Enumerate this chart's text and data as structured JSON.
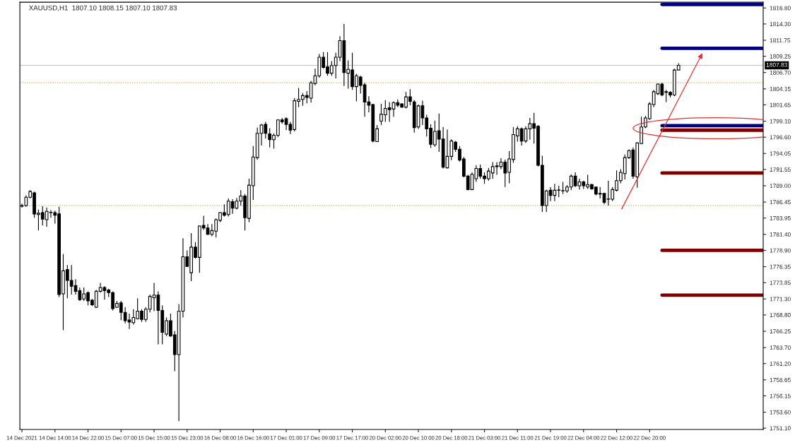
{
  "chart_data": {
    "type": "candlestick",
    "title": "XAUUSD,H1  1807.10 1808.15 1807.10 1807.83",
    "categories": [
      "14 Dec 2021",
      null,
      null,
      null,
      null,
      null,
      null,
      null,
      "14 Dec 14:00",
      null,
      null,
      null,
      null,
      null,
      null,
      null,
      "14 Dec 22:00",
      null,
      null,
      null,
      null,
      null,
      null,
      null,
      "15 Dec 07:00",
      null,
      null,
      null,
      null,
      null,
      null,
      null,
      "15 Dec 15:00",
      null,
      null,
      null,
      null,
      null,
      null,
      null,
      "15 Dec 23:00",
      null,
      null,
      null,
      null,
      null,
      null,
      null,
      "16 Dec 08:00",
      null,
      null,
      null,
      null,
      null,
      null,
      null,
      "16 Dec 16:00",
      null,
      null,
      null,
      null,
      null,
      null,
      null,
      "17 Dec 01:00",
      null,
      null,
      null,
      null,
      null,
      null,
      null,
      "17 Dec 09:00",
      null,
      null,
      null,
      null,
      null,
      null,
      null,
      "17 Dec 17:00",
      null,
      null,
      null,
      null,
      null,
      null,
      null,
      "20 Dec 02:00",
      null,
      null,
      null,
      null,
      null,
      null,
      null,
      "20 Dec 10:00",
      null,
      null,
      null,
      null,
      null,
      null,
      null,
      "20 Dec 18:00",
      null,
      null,
      null,
      null,
      null,
      null,
      null,
      "21 Dec 03:00",
      null,
      null,
      null,
      null,
      null,
      null,
      null,
      "21 Dec 11:00",
      null,
      null,
      null,
      null,
      null,
      null,
      null,
      "21 Dec 19:00",
      null,
      null,
      null,
      null,
      null,
      null,
      null,
      "22 Dec 04:00",
      null,
      null,
      null,
      null,
      null,
      null,
      null,
      "22 Dec 12:00",
      null,
      null,
      null,
      null,
      null,
      null,
      null,
      "22 Dec 20:00",
      null,
      null,
      null,
      null,
      null,
      null,
      null,
      null,
      null,
      null,
      null,
      null,
      null,
      null,
      null,
      null,
      null,
      null,
      null,
      null,
      null,
      null,
      null,
      null,
      null,
      null,
      null
    ],
    "ohlc": [
      [
        1785.8,
        1786.2,
        1785.6,
        1785.9
      ],
      [
        1785.9,
        1787.5,
        1785.7,
        1787.2
      ],
      [
        1787.2,
        1788.3,
        1787.0,
        1788.1
      ],
      [
        1787.9,
        1788.1,
        1784.0,
        1784.6
      ],
      [
        1784.5,
        1785.3,
        1782.0,
        1784.7
      ],
      [
        1784.8,
        1785.8,
        1782.8,
        1783.8
      ],
      [
        1783.7,
        1785.6,
        1782.6,
        1785.0
      ],
      [
        1784.8,
        1785.2,
        1784.0,
        1784.8
      ],
      [
        1784.8,
        1785.1,
        1783.1,
        1784.4
      ],
      [
        1784.6,
        1785.7,
        1771.6,
        1772.0
      ],
      [
        1772.1,
        1778.3,
        1766.4,
        1775.7
      ],
      [
        1775.9,
        1776.6,
        1771.4,
        1774.2
      ],
      [
        1774.2,
        1776.6,
        1772.0,
        1773.3
      ],
      [
        1773.4,
        1774.4,
        1772.0,
        1772.5
      ],
      [
        1772.6,
        1773.1,
        1771.0,
        1771.2
      ],
      [
        1771.3,
        1773.1,
        1771.0,
        1772.1
      ],
      [
        1772.3,
        1772.5,
        1770.3,
        1771.0
      ],
      [
        1771.1,
        1771.3,
        1770.2,
        1770.4
      ],
      [
        1770.0,
        1772.7,
        1769.9,
        1772.5
      ],
      [
        1772.5,
        1773.8,
        1772.3,
        1773.1
      ],
      [
        1773.1,
        1773.3,
        1771.2,
        1772.6
      ],
      [
        1772.7,
        1772.9,
        1771.6,
        1772.3
      ],
      [
        1772.3,
        1772.5,
        1769.5,
        1769.8
      ],
      [
        1770.0,
        1771.0,
        1769.9,
        1770.6
      ],
      [
        1770.7,
        1771.0,
        1768.0,
        1769.2
      ],
      [
        1769.2,
        1770.0,
        1767.5,
        1767.9
      ],
      [
        1768.0,
        1769.0,
        1766.6,
        1767.7
      ],
      [
        1767.6,
        1769.7,
        1767.3,
        1768.4
      ],
      [
        1768.2,
        1771.4,
        1768.1,
        1769.4
      ],
      [
        1769.4,
        1769.7,
        1767.7,
        1768.1
      ],
      [
        1768.1,
        1770.0,
        1767.7,
        1769.7
      ],
      [
        1769.7,
        1772.0,
        1769.2,
        1771.7
      ],
      [
        1771.5,
        1773.8,
        1769.4,
        1771.9
      ],
      [
        1771.9,
        1772.5,
        1764.2,
        1769.5
      ],
      [
        1769.5,
        1770.3,
        1764.2,
        1766.1
      ],
      [
        1765.8,
        1768.4,
        1765.5,
        1767.9
      ],
      [
        1767.9,
        1769.0,
        1765.4,
        1765.5
      ],
      [
        1765.7,
        1766.3,
        1760.0,
        1762.6
      ],
      [
        1762.6,
        1770.5,
        1752.2,
        1769.4
      ],
      [
        1769.4,
        1780.8,
        1768.4,
        1777.9
      ],
      [
        1777.9,
        1778.9,
        1776.3,
        1776.4
      ],
      [
        1775.4,
        1781.6,
        1774.1,
        1779.4
      ],
      [
        1779.4,
        1780.2,
        1777.6,
        1777.8
      ],
      [
        1777.8,
        1782.8,
        1775.4,
        1782.7
      ],
      [
        1782.8,
        1784.3,
        1782.1,
        1782.4
      ],
      [
        1782.4,
        1783.0,
        1781.3,
        1781.4
      ],
      [
        1781.4,
        1783.0,
        1781.1,
        1782.0
      ],
      [
        1781.9,
        1783.9,
        1780.9,
        1783.7
      ],
      [
        1783.6,
        1784.9,
        1783.3,
        1784.8
      ],
      [
        1784.8,
        1786.1,
        1784.2,
        1784.4
      ],
      [
        1784.5,
        1787.0,
        1784.2,
        1786.6
      ],
      [
        1786.5,
        1786.9,
        1784.6,
        1785.5
      ],
      [
        1785.5,
        1787.1,
        1785.3,
        1786.6
      ],
      [
        1786.6,
        1788.3,
        1785.9,
        1787.4
      ],
      [
        1787.4,
        1787.7,
        1782.0,
        1784.0
      ],
      [
        1783.9,
        1790.1,
        1783.3,
        1789.1
      ],
      [
        1789.0,
        1795.2,
        1786.8,
        1793.5
      ],
      [
        1793.4,
        1798.1,
        1793.1,
        1797.2
      ],
      [
        1797.2,
        1798.7,
        1795.3,
        1798.5
      ],
      [
        1798.6,
        1799.0,
        1796.4,
        1797.2
      ],
      [
        1797.1,
        1798.0,
        1795.0,
        1796.2
      ],
      [
        1796.2,
        1797.2,
        1794.8,
        1796.9
      ],
      [
        1796.9,
        1799.4,
        1796.6,
        1799.3
      ],
      [
        1799.3,
        1799.6,
        1798.7,
        1799.0
      ],
      [
        1799.5,
        1799.7,
        1797.7,
        1798.6
      ],
      [
        1798.6,
        1799.0,
        1797.1,
        1797.7
      ],
      [
        1797.8,
        1802.7,
        1797.5,
        1802.3
      ],
      [
        1802.2,
        1804.3,
        1801.3,
        1802.5
      ],
      [
        1802.5,
        1803.5,
        1801.5,
        1803.1
      ],
      [
        1803.1,
        1803.8,
        1801.9,
        1802.8
      ],
      [
        1802.7,
        1805.4,
        1802.0,
        1805.1
      ],
      [
        1805.0,
        1807.3,
        1804.7,
        1806.2
      ],
      [
        1806.2,
        1809.6,
        1805.9,
        1809.1
      ],
      [
        1809.1,
        1809.9,
        1807.3,
        1807.5
      ],
      [
        1807.6,
        1809.9,
        1806.2,
        1806.6
      ],
      [
        1806.6,
        1808.5,
        1806.2,
        1807.8
      ],
      [
        1807.8,
        1809.8,
        1805.8,
        1809.1
      ],
      [
        1809.1,
        1812.4,
        1808.5,
        1811.7
      ],
      [
        1811.7,
        1814.3,
        1804.6,
        1806.7
      ],
      [
        1806.6,
        1808.6,
        1804.2,
        1807.2
      ],
      [
        1807.1,
        1809.8,
        1804.0,
        1804.5
      ],
      [
        1804.5,
        1806.5,
        1802.2,
        1806.2
      ],
      [
        1806.0,
        1806.2,
        1803.4,
        1804.7
      ],
      [
        1804.8,
        1805.1,
        1799.8,
        1802.1
      ],
      [
        1802.1,
        1803.0,
        1800.5,
        1801.6
      ],
      [
        1801.7,
        1801.8,
        1795.8,
        1796.0
      ],
      [
        1795.9,
        1798.5,
        1795.9,
        1797.9
      ],
      [
        1799.1,
        1801.8,
        1798.5,
        1800.2
      ],
      [
        1800.1,
        1802.4,
        1799.0,
        1801.1
      ],
      [
        1801.2,
        1802.1,
        1799.0,
        1800.9
      ],
      [
        1801.0,
        1802.2,
        1799.8,
        1802.0
      ],
      [
        1802.0,
        1802.5,
        1801.3,
        1801.6
      ],
      [
        1801.8,
        1801.9,
        1801.2,
        1801.3
      ],
      [
        1801.3,
        1803.7,
        1801.1,
        1802.9
      ],
      [
        1802.9,
        1804.1,
        1801.6,
        1802.2
      ],
      [
        1802.1,
        1802.4,
        1797.3,
        1798.1
      ],
      [
        1798.2,
        1801.7,
        1797.9,
        1801.5
      ],
      [
        1801.5,
        1802.3,
        1798.5,
        1799.6
      ],
      [
        1799.6,
        1800.1,
        1796.7,
        1797.9
      ],
      [
        1798.0,
        1798.6,
        1794.9,
        1795.5
      ],
      [
        1795.4,
        1799.2,
        1795.1,
        1797.5
      ],
      [
        1797.6,
        1800.3,
        1794.3,
        1796.3
      ],
      [
        1796.3,
        1798.2,
        1791.7,
        1791.9
      ],
      [
        1791.8,
        1797.8,
        1791.7,
        1793.6
      ],
      [
        1793.6,
        1796.3,
        1793.0,
        1796.0
      ],
      [
        1795.8,
        1796.0,
        1794.3,
        1794.7
      ],
      [
        1794.7,
        1795.2,
        1792.8,
        1793.0
      ],
      [
        1793.2,
        1793.5,
        1790.3,
        1790.5
      ],
      [
        1790.5,
        1790.7,
        1788.3,
        1788.4
      ],
      [
        1788.4,
        1791.1,
        1788.3,
        1790.8
      ],
      [
        1790.1,
        1792.2,
        1789.6,
        1791.7
      ],
      [
        1791.7,
        1792.3,
        1790.1,
        1790.5
      ],
      [
        1790.5,
        1791.1,
        1789.3,
        1790.1
      ],
      [
        1790.1,
        1791.8,
        1789.8,
        1791.3
      ],
      [
        1791.0,
        1792.7,
        1790.1,
        1792.0
      ],
      [
        1792.0,
        1792.7,
        1790.7,
        1792.1
      ],
      [
        1792.0,
        1793.3,
        1791.6,
        1792.7
      ],
      [
        1792.7,
        1793.1,
        1788.8,
        1791.0
      ],
      [
        1791.1,
        1794.4,
        1789.4,
        1793.2
      ],
      [
        1793.1,
        1798.2,
        1792.6,
        1797.0
      ],
      [
        1796.8,
        1798.3,
        1795.9,
        1797.9
      ],
      [
        1797.9,
        1798.1,
        1795.3,
        1796.0
      ],
      [
        1796.0,
        1798.3,
        1795.7,
        1797.9
      ],
      [
        1797.9,
        1799.6,
        1796.2,
        1798.7
      ],
      [
        1798.7,
        1800.4,
        1795.6,
        1798.0
      ],
      [
        1798.3,
        1798.5,
        1792.0,
        1792.2
      ],
      [
        1792.2,
        1793.7,
        1784.9,
        1785.9
      ],
      [
        1785.9,
        1788.4,
        1784.9,
        1788.2
      ],
      [
        1788.3,
        1788.8,
        1786.6,
        1787.5
      ],
      [
        1787.5,
        1789.3,
        1786.6,
        1788.3
      ],
      [
        1788.3,
        1789.0,
        1787.2,
        1788.3
      ],
      [
        1788.2,
        1789.6,
        1787.7,
        1788.2
      ],
      [
        1788.2,
        1789.1,
        1787.9,
        1788.8
      ],
      [
        1788.8,
        1790.8,
        1788.3,
        1790.5
      ],
      [
        1790.5,
        1791.1,
        1788.8,
        1789.0
      ],
      [
        1789.0,
        1790.1,
        1788.4,
        1789.6
      ],
      [
        1789.6,
        1789.8,
        1788.5,
        1789.0
      ],
      [
        1788.8,
        1790.7,
        1788.5,
        1789.2
      ],
      [
        1789.2,
        1789.3,
        1788.4,
        1788.5
      ],
      [
        1788.8,
        1788.9,
        1787.5,
        1787.7
      ],
      [
        1787.8,
        1788.8,
        1787.0,
        1787.7
      ],
      [
        1787.8,
        1787.9,
        1786.1,
        1786.4
      ],
      [
        1786.9,
        1789.8,
        1785.9,
        1786.9
      ],
      [
        1786.9,
        1788.8,
        1786.6,
        1788.4
      ],
      [
        1788.3,
        1791.4,
        1788.1,
        1789.8
      ],
      [
        1789.8,
        1791.6,
        1789.4,
        1791.1
      ],
      [
        1790.9,
        1793.9,
        1790.0,
        1793.4
      ],
      [
        1793.4,
        1794.7,
        1793.2,
        1794.5
      ],
      [
        1794.6,
        1795.0,
        1790.1,
        1790.5
      ],
      [
        1790.4,
        1795.8,
        1788.7,
        1795.7
      ],
      [
        1795.6,
        1799.8,
        1795.5,
        1798.2
      ],
      [
        1798.2,
        1799.9,
        1798.0,
        1799.6
      ],
      [
        1799.5,
        1802.1,
        1799.3,
        1801.8
      ],
      [
        1801.7,
        1804.0,
        1801.3,
        1803.7
      ],
      [
        1803.4,
        1805.0,
        1803.2,
        1804.9
      ],
      [
        1804.9,
        1805.1,
        1803.0,
        1803.2
      ],
      [
        1803.7,
        1804.0,
        1802.1,
        1803.6
      ],
      [
        1803.6,
        1803.8,
        1802.8,
        1803.2
      ],
      [
        1803.2,
        1807.3,
        1803.0,
        1807.1
      ],
      [
        1807.1,
        1808.15,
        1807.1,
        1807.83
      ],
      null,
      null,
      null,
      null,
      null,
      null,
      null,
      null,
      null,
      null,
      null,
      null,
      null,
      null,
      null,
      null,
      null,
      null,
      null,
      null
    ],
    "ylim": [
      1750.9,
      1817.7
    ],
    "yticks": [
      {
        "value": 1816.8,
        "label": "1816.80"
      },
      {
        "value": 1814.3,
        "label": "1814.30"
      },
      {
        "value": 1811.75,
        "label": "1811.75"
      },
      {
        "value": 1809.25,
        "label": "1809.25"
      },
      {
        "value": 1806.7,
        "label": "1806.70"
      },
      {
        "value": 1804.15,
        "label": "1804.15"
      },
      {
        "value": 1801.65,
        "label": "1801.65"
      },
      {
        "value": 1799.1,
        "label": "1799.10"
      },
      {
        "value": 1796.6,
        "label": "1796.60"
      },
      {
        "value": 1794.05,
        "label": "1794.05"
      },
      {
        "value": 1791.55,
        "label": "1791.55"
      },
      {
        "value": 1789.0,
        "label": "1789.00"
      },
      {
        "value": 1786.45,
        "label": "1786.45"
      },
      {
        "value": 1783.95,
        "label": "1783.95"
      },
      {
        "value": 1781.4,
        "label": "1781.40"
      },
      {
        "value": 1778.9,
        "label": "1778.90"
      },
      {
        "value": 1776.35,
        "label": "1776.35"
      },
      {
        "value": 1773.85,
        "label": "1773.85"
      },
      {
        "value": 1771.3,
        "label": "1771.30"
      },
      {
        "value": 1768.8,
        "label": "1768.80"
      },
      {
        "value": 1766.25,
        "label": "1766.25"
      },
      {
        "value": 1763.7,
        "label": "1763.70"
      },
      {
        "value": 1761.2,
        "label": "1761.20"
      },
      {
        "value": 1758.65,
        "label": "1758.65"
      },
      {
        "value": 1756.15,
        "label": "1756.15"
      },
      {
        "value": 1753.6,
        "label": "1753.60"
      },
      {
        "value": 1751.1,
        "label": "1751.10"
      }
    ],
    "ref_lines": [
      {
        "axis": "y",
        "value": 1817.35,
        "color": "#000080",
        "line_style": "solid"
      },
      {
        "axis": "y",
        "value": 1810.5,
        "color": "#000080",
        "line_style": "solid"
      },
      {
        "axis": "y",
        "value": 1798.4,
        "color": "#000080",
        "line_style": "solid"
      },
      {
        "axis": "y",
        "value": 1797.7,
        "color": "#800000",
        "line_style": "solid"
      },
      {
        "axis": "y",
        "value": 1791.0,
        "color": "#800000",
        "line_style": "solid"
      },
      {
        "axis": "y",
        "value": 1778.9,
        "color": "#800000",
        "line_style": "solid"
      },
      {
        "axis": "y",
        "value": 1771.9,
        "color": "#800000",
        "line_style": "solid"
      },
      {
        "axis": "y",
        "value": 1805.1,
        "color": "#e0b020",
        "line_style": "dotted"
      },
      {
        "axis": "y",
        "value": 1785.9,
        "color": "#e0b020",
        "line_style": "dotted"
      },
      {
        "axis": "y",
        "value": 1807.83,
        "color": "#c0c0c0",
        "line_style": "solid",
        "label": "1807.83"
      }
    ]
  }
}
